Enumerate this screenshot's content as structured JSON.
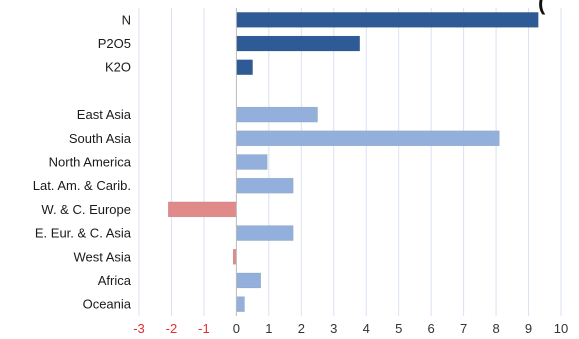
{
  "header_fragment": "(",
  "chart_data": {
    "type": "bar",
    "orientation": "horizontal",
    "categories": [
      "N",
      "P2O5",
      "K2O",
      "",
      "East Asia",
      "South Asia",
      "North America",
      "Lat. Am. & Carib.",
      "W. & C. Europe",
      "E. Eur. & C. Asia",
      "West Asia",
      "Africa",
      "Oceania"
    ],
    "values": [
      9.3,
      3.8,
      0.5,
      null,
      2.5,
      8.1,
      0.95,
      1.75,
      -2.1,
      1.75,
      -0.1,
      0.75,
      0.25
    ],
    "bar_colors": [
      "#2e5a96",
      "#2e5a96",
      "#2e5a96",
      null,
      "#93b0dc",
      "#93b0dc",
      "#93b0dc",
      "#93b0dc",
      "#e08a8a",
      "#93b0dc",
      "#e08a8a",
      "#93b0dc",
      "#93b0dc"
    ],
    "xlim": [
      -3,
      10
    ],
    "xticks": [
      -3,
      -2,
      -1,
      0,
      1,
      2,
      3,
      4,
      5,
      6,
      7,
      8,
      9,
      10
    ],
    "negative_tick_color": "#e03030",
    "positive_tick_color": "#333333",
    "grid": true,
    "title": "",
    "xlabel": "",
    "ylabel": ""
  }
}
